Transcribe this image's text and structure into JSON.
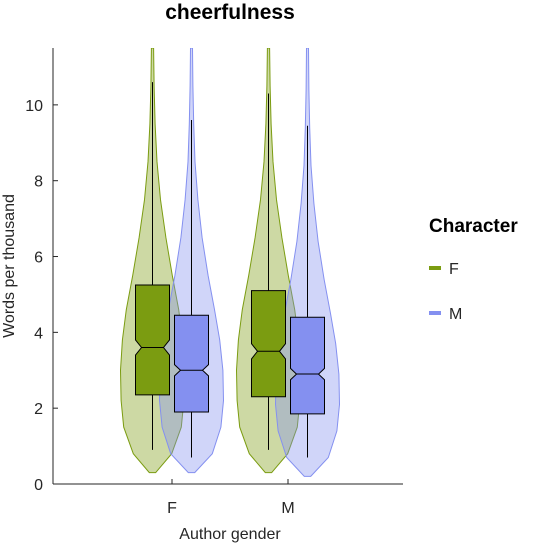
{
  "chart_data": {
    "type": "violin",
    "title": "cheerfulness",
    "xlabel": "Author gender",
    "ylabel": "Words per thousand",
    "categories": [
      "F",
      "M"
    ],
    "ylim": [
      0,
      11.5
    ],
    "yticks": [
      0,
      2,
      4,
      6,
      8,
      10
    ],
    "grid": false,
    "legend": {
      "title": "Character",
      "placement": "right"
    },
    "series": [
      {
        "name": "F",
        "color": "#7b9c11",
        "groups": [
          {
            "category": "F",
            "whisker_low": 0.9,
            "q1": 2.35,
            "median": 3.6,
            "q3": 5.25,
            "whisker_high": 10.6,
            "notch_low": 3.4,
            "notch_high": 3.8,
            "density": [
              [
                0.3,
                0.1
              ],
              [
                0.8,
                0.6
              ],
              [
                1.5,
                0.9
              ],
              [
                2.2,
                0.98
              ],
              [
                3.0,
                1.0
              ],
              [
                3.8,
                0.94
              ],
              [
                4.6,
                0.82
              ],
              [
                5.5,
                0.62
              ],
              [
                6.5,
                0.42
              ],
              [
                7.5,
                0.25
              ],
              [
                8.5,
                0.14
              ],
              [
                9.5,
                0.08
              ],
              [
                10.5,
                0.05
              ],
              [
                11.5,
                0.035
              ]
            ]
          },
          {
            "category": "M",
            "whisker_low": 0.9,
            "q1": 2.3,
            "median": 3.5,
            "q3": 5.1,
            "whisker_high": 10.3,
            "notch_low": 3.3,
            "notch_high": 3.7,
            "density": [
              [
                0.3,
                0.1
              ],
              [
                0.8,
                0.6
              ],
              [
                1.5,
                0.9
              ],
              [
                2.2,
                0.98
              ],
              [
                3.0,
                1.0
              ],
              [
                3.8,
                0.94
              ],
              [
                4.6,
                0.82
              ],
              [
                5.5,
                0.62
              ],
              [
                6.5,
                0.42
              ],
              [
                7.5,
                0.25
              ],
              [
                8.5,
                0.14
              ],
              [
                9.5,
                0.08
              ],
              [
                10.5,
                0.05
              ],
              [
                11.5,
                0.035
              ]
            ]
          }
        ]
      },
      {
        "name": "M",
        "color": "#8490f0",
        "groups": [
          {
            "category": "F",
            "whisker_low": 0.7,
            "q1": 1.9,
            "median": 3.0,
            "q3": 4.45,
            "whisker_high": 9.6,
            "notch_low": 2.85,
            "notch_high": 3.15,
            "density": [
              [
                0.3,
                0.1
              ],
              [
                0.8,
                0.65
              ],
              [
                1.5,
                0.92
              ],
              [
                2.2,
                1.0
              ],
              [
                3.0,
                0.98
              ],
              [
                3.8,
                0.88
              ],
              [
                4.6,
                0.72
              ],
              [
                5.5,
                0.52
              ],
              [
                6.5,
                0.33
              ],
              [
                7.5,
                0.2
              ],
              [
                8.5,
                0.11
              ],
              [
                9.5,
                0.07
              ],
              [
                10.5,
                0.045
              ],
              [
                11.5,
                0.03
              ]
            ]
          },
          {
            "category": "M",
            "whisker_low": 0.7,
            "q1": 1.85,
            "median": 2.9,
            "q3": 4.4,
            "whisker_high": 9.45,
            "notch_low": 2.75,
            "notch_high": 3.05,
            "density": [
              [
                0.2,
                0.1
              ],
              [
                0.7,
                0.65
              ],
              [
                1.4,
                0.92
              ],
              [
                2.1,
                1.0
              ],
              [
                2.9,
                0.98
              ],
              [
                3.7,
                0.88
              ],
              [
                4.5,
                0.72
              ],
              [
                5.4,
                0.52
              ],
              [
                6.4,
                0.33
              ],
              [
                7.4,
                0.2
              ],
              [
                8.4,
                0.11
              ],
              [
                9.4,
                0.07
              ],
              [
                10.4,
                0.045
              ],
              [
                11.5,
                0.03
              ]
            ]
          }
        ]
      }
    ]
  }
}
